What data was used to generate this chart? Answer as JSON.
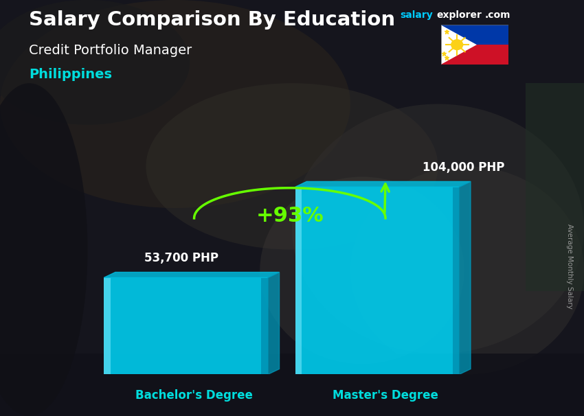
{
  "title_main": "Salary Comparison By Education",
  "subtitle": "Credit Portfolio Manager",
  "country": "Philippines",
  "categories": [
    "Bachelor's Degree",
    "Master's Degree"
  ],
  "values": [
    53700,
    104000
  ],
  "value_labels": [
    "53,700 PHP",
    "104,000 PHP"
  ],
  "pct_change": "+93%",
  "bar_color_main": "#00CCEE",
  "bar_color_left": "#55DDFF",
  "bar_color_right": "#0099BB",
  "bar_color_top": "#00BBDD",
  "ylabel_text": "Average Monthly Salary",
  "title_color": "#FFFFFF",
  "subtitle_color": "#FFFFFF",
  "country_color": "#00DDDD",
  "salary_color": "#00CCFF",
  "explorer_color": "#FFFFFF",
  "value_label_color": "#FFFFFF",
  "xlabel_color": "#00DDDD",
  "pct_color": "#66FF00",
  "arrow_color": "#66FF00",
  "bg_color": "#2a2a3a"
}
